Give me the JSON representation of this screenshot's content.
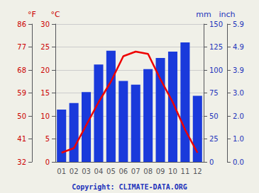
{
  "chart_data": {
    "type": "bar",
    "categories": [
      "01",
      "02",
      "03",
      "04",
      "05",
      "06",
      "07",
      "08",
      "09",
      "10",
      "11",
      "12"
    ],
    "series": [
      {
        "type": "bar",
        "color": "#1a3adb",
        "axis": "y2",
        "values": [
          57,
          64,
          76,
          106,
          121,
          88,
          84,
          101,
          113,
          120,
          130,
          72
        ]
      },
      {
        "type": "line",
        "color": "#ee0000",
        "axis": "y",
        "values": [
          2.0,
          3.0,
          8.0,
          13.0,
          17.5,
          23.0,
          24.0,
          23.5,
          18.0,
          13.0,
          7.0,
          2.0
        ]
      }
    ],
    "ylabel": "°C",
    "y2label": "mm",
    "y3label": "°F",
    "y4label": "inch",
    "ylim": [
      0,
      30
    ],
    "yticks": [
      0,
      5,
      10,
      15,
      20,
      25,
      30
    ],
    "y2lim": [
      0,
      150
    ],
    "y2ticks": [
      0,
      25,
      50,
      75,
      100,
      125,
      150
    ],
    "y3lim": [
      0,
      30
    ],
    "y3ticks": [
      {
        "value": 0,
        "label": "32"
      },
      {
        "value": 5,
        "label": "41"
      },
      {
        "value": 10,
        "label": "50"
      },
      {
        "value": 15,
        "label": "59"
      },
      {
        "value": 20,
        "label": "68"
      },
      {
        "value": 25,
        "label": "77"
      },
      {
        "value": 30,
        "label": "86"
      }
    ],
    "y4lim": [
      0,
      150
    ],
    "y4ticks": [
      {
        "value": 0,
        "label": "0.0"
      },
      {
        "value": 25,
        "label": "1.0"
      },
      {
        "value": 50,
        "label": "2.0"
      },
      {
        "value": 75,
        "label": "3.0"
      },
      {
        "value": 100,
        "label": "3.9"
      },
      {
        "value": 125,
        "label": "4.9"
      },
      {
        "value": 150,
        "label": "5.9"
      }
    ],
    "grid": true,
    "annotations": [
      "Copyright: CLIMATE-DATA.ORG"
    ],
    "y_color": "#cc0000",
    "y2_color": "#2233bb",
    "annotation_color": "#2233bb",
    "grid_color": "#cccccc",
    "background": "#f0f0e8"
  }
}
